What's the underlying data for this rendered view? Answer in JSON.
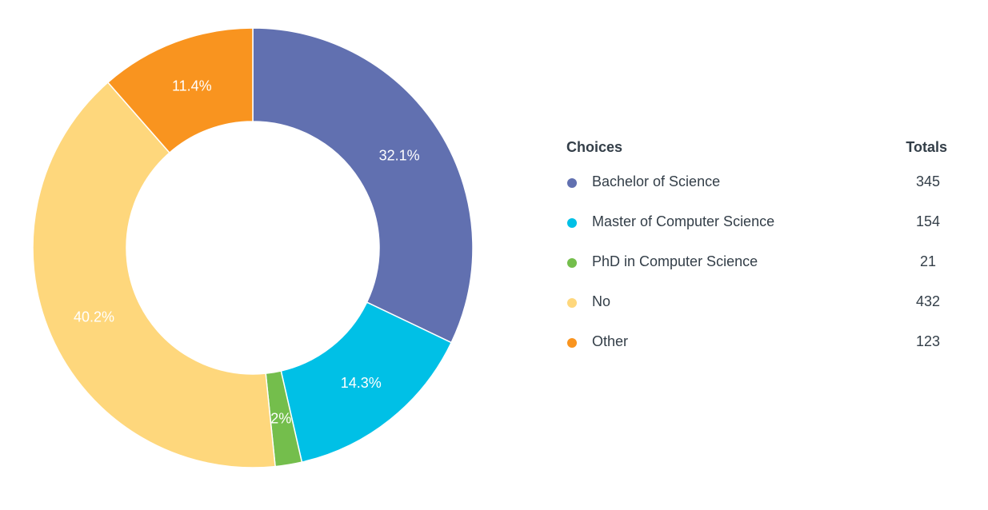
{
  "chart_data": {
    "type": "pie",
    "subtype": "donut",
    "categories": [
      "Bachelor of Science",
      "Master of Computer Science",
      "PhD in Computer Science",
      "No",
      "Other"
    ],
    "values": [
      345,
      154,
      21,
      432,
      123
    ],
    "percent_labels": [
      "32.1%",
      "14.3%",
      "2%",
      "40.2%",
      "11.4%"
    ],
    "colors": [
      "#6170b0",
      "#00c0e6",
      "#74be4c",
      "#fed77c",
      "#f9941f"
    ],
    "legend": {
      "choices_header": "Choices",
      "totals_header": "Totals"
    }
  }
}
